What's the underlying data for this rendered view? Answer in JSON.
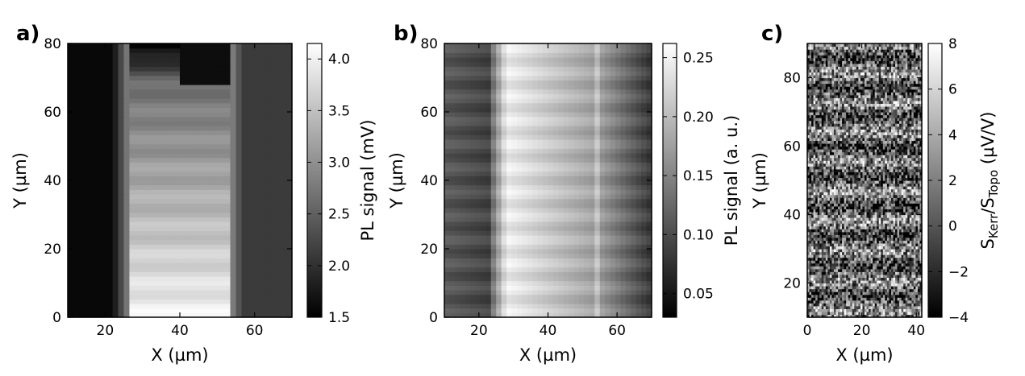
{
  "chart_data": [
    {
      "type": "heatmap",
      "panel_label": "a)",
      "title": "",
      "xlabel": "X (µm)",
      "ylabel": "Y (µm)",
      "xlim": [
        10,
        70
      ],
      "ylim": [
        0,
        80
      ],
      "x_ticks": [
        20,
        40,
        60
      ],
      "y_ticks": [
        0,
        20,
        40,
        60,
        80
      ],
      "colormap": "gray",
      "colorbar": {
        "label": "PL signal (mV)",
        "range": [
          1.5,
          4.15
        ],
        "ticks": [
          1.5,
          2.0,
          2.5,
          3.0,
          3.5,
          4.0
        ],
        "tick_labels": [
          "1.5",
          "2.0",
          "2.5",
          "3.0",
          "3.5",
          "4.0"
        ]
      },
      "image_ranges": {
        "x": [
          0,
          25,
          60,
          100
        ],
        "y": [
          0,
          40,
          80
        ],
        "z": [
          1.5,
          2.8,
          4.1
        ]
      }
    },
    {
      "type": "heatmap",
      "panel_label": "b)",
      "title": "",
      "xlabel": "X (µm)",
      "ylabel": "Y (µm)",
      "xlim": [
        10,
        70
      ],
      "ylim": [
        0,
        80
      ],
      "x_ticks": [
        20,
        40,
        60
      ],
      "y_ticks": [
        0,
        20,
        40,
        60,
        80
      ],
      "colormap": "gray",
      "colorbar": {
        "label": "PL signal (a. u.)",
        "range": [
          0.03,
          0.262
        ],
        "ticks": [
          0.05,
          0.1,
          0.15,
          0.2,
          0.25
        ],
        "tick_labels": [
          "0.05",
          "0.10",
          "0.15",
          "0.20",
          "0.25"
        ]
      },
      "image_ranges": {
        "x": [
          10,
          25,
          40,
          55,
          70
        ],
        "y": [
          0,
          40,
          80
        ],
        "z": [
          0.03,
          0.15,
          0.26
        ]
      }
    },
    {
      "type": "heatmap",
      "panel_label": "c)",
      "title": "",
      "xlabel": "X (µm)",
      "ylabel": "Y (µm)",
      "xlim": [
        0,
        42
      ],
      "ylim": [
        10,
        90
      ],
      "x_ticks": [
        0,
        20,
        40
      ],
      "y_ticks": [
        20,
        40,
        60,
        80
      ],
      "colormap": "gray",
      "colorbar": {
        "label_main": "S",
        "label_sub1": "Kerr",
        "label_mid": "/S",
        "label_sub2": "Topo",
        "label_unit": " (µV/V)",
        "range": [
          -4,
          8
        ],
        "ticks": [
          -4,
          -2,
          0,
          2,
          4,
          6,
          8
        ],
        "tick_labels": [
          "−4",
          "−2",
          "0",
          "2",
          "4",
          "6",
          "8"
        ]
      },
      "image_ranges": {
        "x": [
          0,
          21,
          42
        ],
        "y": [
          10,
          50,
          90
        ],
        "z": [
          -4,
          2,
          8
        ]
      }
    }
  ]
}
